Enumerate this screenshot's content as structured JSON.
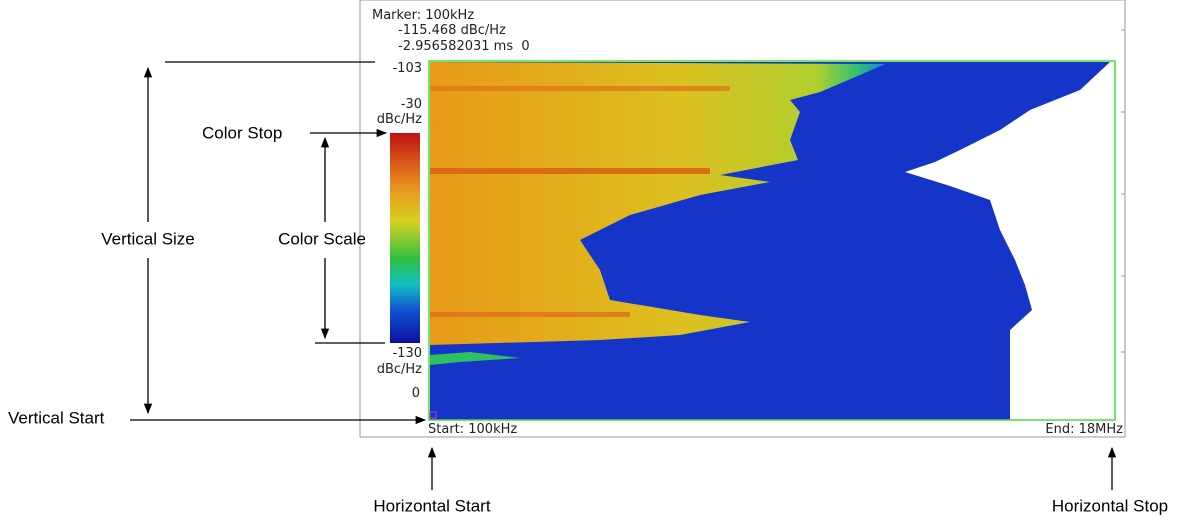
{
  "screen": {
    "marker": {
      "frequency": "Marker: 100kHz",
      "level": "-115.468 dBc/Hz",
      "time": "-2.956582031 ms  0"
    },
    "vertical_top": "-103",
    "color_stop": {
      "value": "-30",
      "unit": "dBc/Hz"
    },
    "color_start": {
      "value": "-130",
      "unit": "dBc/Hz"
    },
    "vertical_start": "0",
    "horizontal_start": "Start: 100kHz",
    "horizontal_stop": "End: 18MHz"
  },
  "callouts": {
    "color_stop": "Color Stop",
    "vertical_size": "Vertical Size",
    "color_scale": "Color Scale",
    "vertical_start": "Vertical Start",
    "horizontal_start": "Horizontal Start",
    "horizontal_stop": "Horizontal Stop"
  }
}
